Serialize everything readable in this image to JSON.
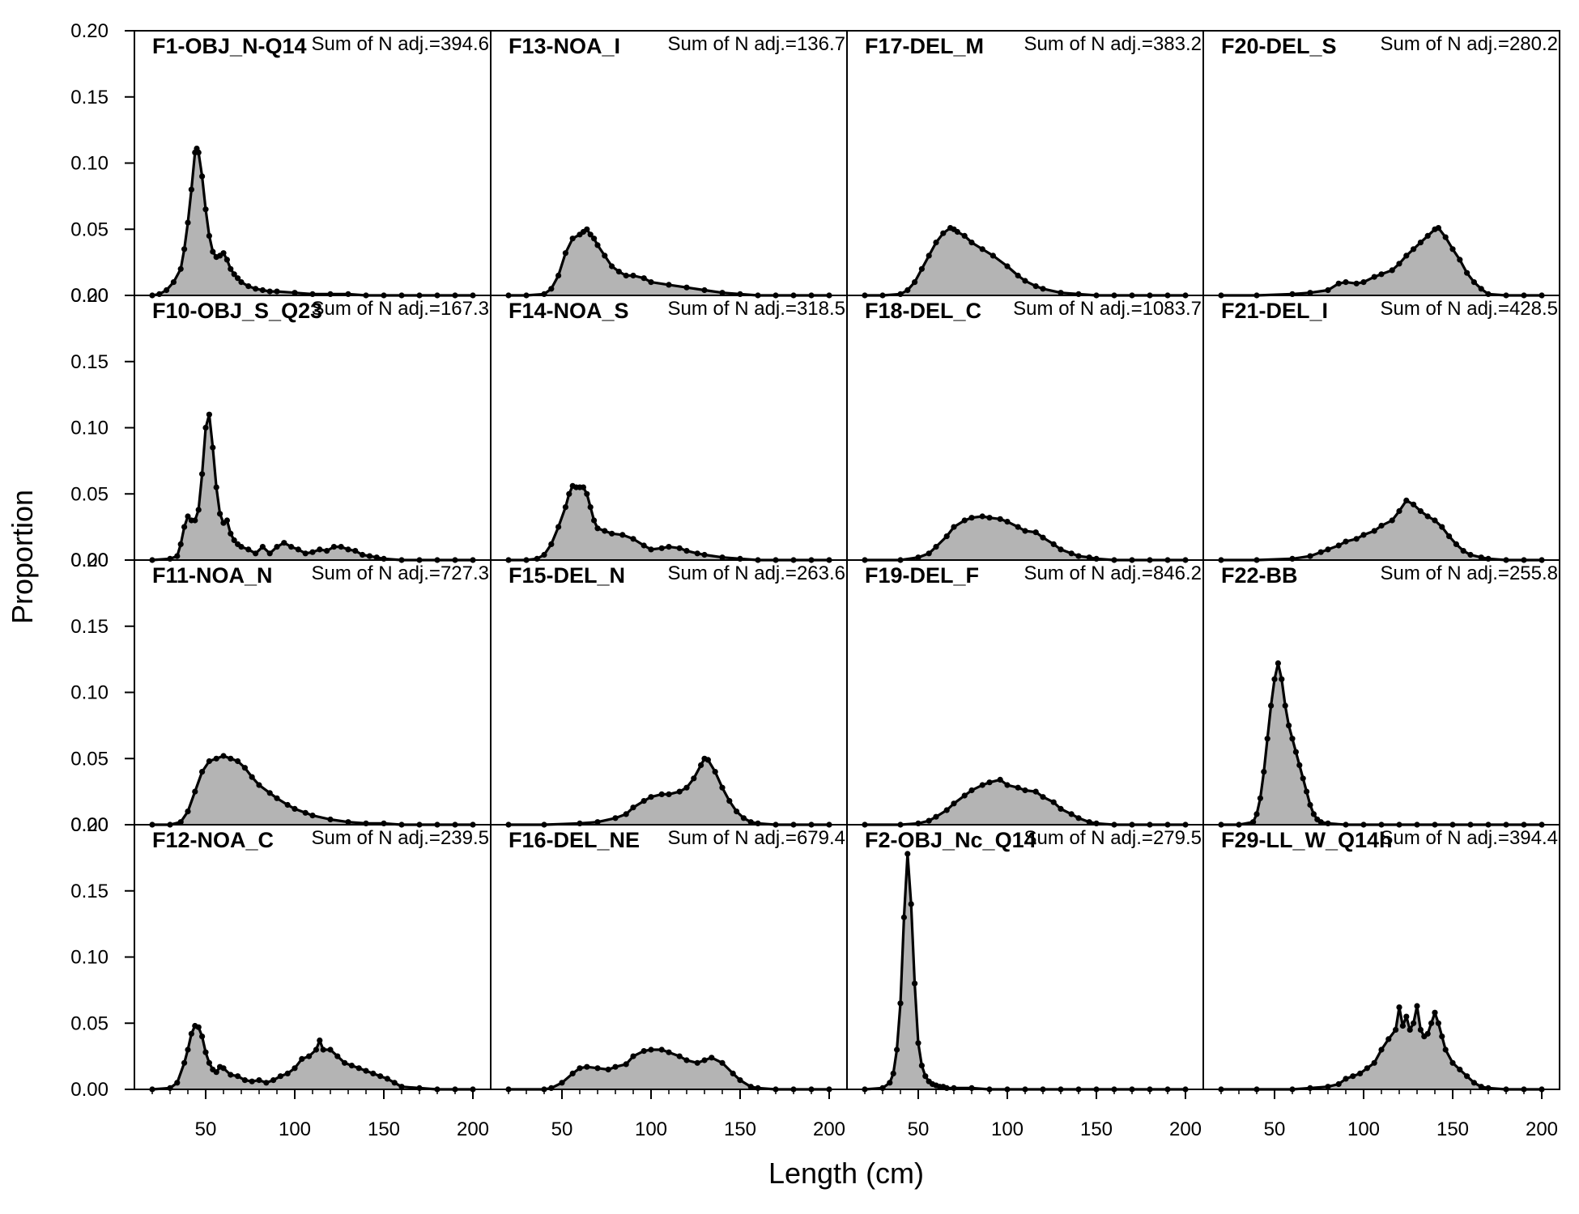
{
  "figure": {
    "xlabel": "Length (cm)",
    "ylabel": "Proportion"
  },
  "chart_data": {
    "type": "area",
    "layout": {
      "rows": 4,
      "cols": 4,
      "shared_axes": true
    },
    "xlim": [
      10,
      210
    ],
    "ylim": [
      0,
      0.2
    ],
    "xticks": [
      50,
      100,
      150,
      200
    ],
    "xtick_labels": [
      "50",
      "100",
      "150",
      "200"
    ],
    "yticks": [
      0,
      0.05,
      0.1,
      0.15,
      0.2
    ],
    "ytick_labels": [
      "0.00",
      "0.05",
      "0.10",
      "0.15",
      "0.20"
    ],
    "fill_color": "#b4b4b4",
    "line_color": "#000000",
    "panels": [
      {
        "title": "F1-OBJ_N-Q14",
        "annotation": "Sum of N adj.=394.6",
        "x": [
          20,
          24,
          28,
          32,
          36,
          38,
          40,
          42,
          44,
          45,
          46,
          48,
          50,
          52,
          54,
          56,
          58,
          60,
          62,
          64,
          66,
          68,
          70,
          74,
          78,
          82,
          86,
          90,
          100,
          110,
          120,
          130,
          140,
          150,
          160,
          170,
          180,
          190,
          200
        ],
        "values": [
          0,
          0.001,
          0.004,
          0.01,
          0.02,
          0.035,
          0.055,
          0.08,
          0.108,
          0.111,
          0.108,
          0.09,
          0.065,
          0.045,
          0.033,
          0.029,
          0.03,
          0.032,
          0.027,
          0.02,
          0.016,
          0.013,
          0.01,
          0.007,
          0.005,
          0.004,
          0.003,
          0.003,
          0.002,
          0.001,
          0.001,
          0.001,
          0,
          0,
          0,
          0,
          0,
          0,
          0
        ]
      },
      {
        "title": "F13-NOA_I",
        "annotation": "Sum of N adj.=136.7",
        "x": [
          20,
          30,
          40,
          44,
          48,
          52,
          56,
          60,
          62,
          64,
          66,
          68,
          70,
          74,
          78,
          82,
          86,
          90,
          96,
          100,
          110,
          120,
          130,
          140,
          150,
          160,
          170,
          180,
          190,
          200
        ],
        "values": [
          0,
          0,
          0.001,
          0.005,
          0.015,
          0.032,
          0.043,
          0.046,
          0.048,
          0.05,
          0.046,
          0.043,
          0.038,
          0.03,
          0.022,
          0.018,
          0.015,
          0.015,
          0.013,
          0.01,
          0.008,
          0.006,
          0.004,
          0.002,
          0.001,
          0,
          0,
          0,
          0,
          0
        ]
      },
      {
        "title": "F17-DEL_M",
        "annotation": "Sum of N adj.=383.2",
        "x": [
          20,
          30,
          40,
          44,
          48,
          52,
          56,
          60,
          64,
          68,
          70,
          72,
          76,
          80,
          86,
          92,
          100,
          106,
          110,
          116,
          120,
          130,
          140,
          150,
          160,
          170,
          180,
          190,
          200
        ],
        "values": [
          0,
          0,
          0.001,
          0.004,
          0.01,
          0.02,
          0.03,
          0.04,
          0.047,
          0.051,
          0.05,
          0.048,
          0.045,
          0.04,
          0.035,
          0.03,
          0.022,
          0.015,
          0.011,
          0.007,
          0.005,
          0.002,
          0.001,
          0,
          0,
          0,
          0,
          0,
          0
        ]
      },
      {
        "title": "F20-DEL_S",
        "annotation": "Sum of N adj.=280.2",
        "x": [
          20,
          40,
          60,
          70,
          80,
          86,
          90,
          96,
          100,
          106,
          110,
          116,
          120,
          124,
          128,
          132,
          136,
          140,
          142,
          146,
          150,
          154,
          158,
          162,
          166,
          170,
          180,
          190,
          200
        ],
        "values": [
          0,
          0,
          0.001,
          0.002,
          0.004,
          0.009,
          0.01,
          0.009,
          0.01,
          0.014,
          0.016,
          0.019,
          0.024,
          0.03,
          0.035,
          0.04,
          0.045,
          0.05,
          0.051,
          0.044,
          0.035,
          0.027,
          0.017,
          0.01,
          0.005,
          0.001,
          0,
          0,
          0
        ]
      },
      {
        "title": "F10-OBJ_S_Q23",
        "annotation": "Sum of N adj.=167.3",
        "x": [
          20,
          30,
          34,
          36,
          38,
          40,
          42,
          44,
          46,
          48,
          50,
          52,
          54,
          56,
          58,
          60,
          62,
          64,
          66,
          68,
          70,
          74,
          78,
          82,
          86,
          90,
          94,
          98,
          102,
          106,
          110,
          114,
          118,
          122,
          126,
          130,
          134,
          138,
          142,
          146,
          150,
          160,
          170,
          180,
          190,
          200
        ],
        "values": [
          0,
          0.001,
          0.003,
          0.012,
          0.025,
          0.033,
          0.03,
          0.03,
          0.038,
          0.065,
          0.1,
          0.11,
          0.085,
          0.055,
          0.035,
          0.028,
          0.03,
          0.02,
          0.015,
          0.012,
          0.01,
          0.008,
          0.005,
          0.01,
          0.005,
          0.01,
          0.013,
          0.01,
          0.008,
          0.005,
          0.006,
          0.008,
          0.007,
          0.01,
          0.01,
          0.008,
          0.007,
          0.004,
          0.003,
          0.002,
          0.001,
          0,
          0,
          0,
          0,
          0
        ]
      },
      {
        "title": "F14-NOA_S",
        "annotation": "Sum of N adj.=318.5",
        "x": [
          20,
          30,
          36,
          40,
          44,
          48,
          52,
          54,
          56,
          58,
          60,
          62,
          64,
          66,
          68,
          70,
          74,
          78,
          84,
          90,
          96,
          100,
          106,
          110,
          116,
          120,
          126,
          130,
          140,
          150,
          160,
          170,
          180,
          190,
          200
        ],
        "values": [
          0,
          0,
          0.001,
          0.004,
          0.012,
          0.025,
          0.04,
          0.05,
          0.056,
          0.055,
          0.055,
          0.055,
          0.05,
          0.04,
          0.03,
          0.024,
          0.022,
          0.02,
          0.019,
          0.016,
          0.011,
          0.008,
          0.009,
          0.01,
          0.009,
          0.007,
          0.005,
          0.004,
          0.002,
          0.001,
          0,
          0,
          0,
          0,
          0
        ]
      },
      {
        "title": "F18-DEL_C",
        "annotation": "Sum of N adj.=1083.7",
        "x": [
          20,
          40,
          50,
          56,
          60,
          66,
          70,
          76,
          80,
          86,
          90,
          96,
          100,
          106,
          110,
          116,
          120,
          126,
          130,
          136,
          140,
          146,
          150,
          160,
          170,
          180,
          190,
          200
        ],
        "values": [
          0,
          0,
          0.002,
          0.005,
          0.01,
          0.018,
          0.025,
          0.03,
          0.032,
          0.033,
          0.032,
          0.031,
          0.029,
          0.025,
          0.022,
          0.021,
          0.017,
          0.012,
          0.008,
          0.005,
          0.003,
          0.002,
          0.001,
          0,
          0,
          0,
          0,
          0
        ]
      },
      {
        "title": "F21-DEL_I",
        "annotation": "Sum of N adj.=428.5",
        "x": [
          20,
          40,
          60,
          70,
          76,
          80,
          86,
          90,
          96,
          100,
          106,
          110,
          116,
          120,
          124,
          128,
          132,
          136,
          140,
          144,
          148,
          152,
          156,
          160,
          166,
          170,
          180,
          190,
          200
        ],
        "values": [
          0,
          0,
          0.001,
          0.003,
          0.006,
          0.008,
          0.011,
          0.014,
          0.016,
          0.019,
          0.022,
          0.026,
          0.03,
          0.037,
          0.045,
          0.042,
          0.037,
          0.033,
          0.03,
          0.025,
          0.018,
          0.012,
          0.007,
          0.004,
          0.002,
          0.001,
          0,
          0,
          0
        ]
      },
      {
        "title": "F11-NOA_N",
        "annotation": "Sum of N adj.=727.3",
        "x": [
          20,
          30,
          36,
          40,
          44,
          48,
          52,
          56,
          60,
          64,
          68,
          72,
          76,
          80,
          86,
          90,
          96,
          100,
          106,
          110,
          120,
          130,
          140,
          150,
          160,
          170,
          180,
          190,
          200
        ],
        "values": [
          0,
          0,
          0.002,
          0.01,
          0.025,
          0.04,
          0.048,
          0.05,
          0.052,
          0.05,
          0.048,
          0.043,
          0.036,
          0.03,
          0.024,
          0.02,
          0.015,
          0.012,
          0.009,
          0.007,
          0.004,
          0.002,
          0.001,
          0.001,
          0,
          0,
          0,
          0,
          0
        ]
      },
      {
        "title": "F15-DEL_N",
        "annotation": "Sum of N adj.=263.6",
        "x": [
          20,
          40,
          60,
          70,
          80,
          86,
          90,
          96,
          100,
          106,
          110,
          116,
          120,
          124,
          128,
          130,
          132,
          136,
          140,
          144,
          148,
          152,
          156,
          160,
          170,
          180,
          190,
          200
        ],
        "values": [
          0,
          0,
          0.001,
          0.002,
          0.005,
          0.008,
          0.013,
          0.018,
          0.021,
          0.023,
          0.023,
          0.025,
          0.028,
          0.035,
          0.045,
          0.05,
          0.049,
          0.04,
          0.028,
          0.018,
          0.01,
          0.005,
          0.002,
          0.001,
          0,
          0,
          0,
          0
        ]
      },
      {
        "title": "F19-DEL_F",
        "annotation": "Sum of N adj.=846.2",
        "x": [
          20,
          40,
          50,
          56,
          60,
          66,
          70,
          76,
          80,
          86,
          90,
          96,
          100,
          106,
          110,
          116,
          120,
          126,
          130,
          136,
          140,
          146,
          150,
          160,
          170,
          180,
          190,
          200
        ],
        "values": [
          0,
          0,
          0.001,
          0.003,
          0.006,
          0.011,
          0.016,
          0.022,
          0.026,
          0.03,
          0.032,
          0.034,
          0.03,
          0.028,
          0.026,
          0.025,
          0.021,
          0.017,
          0.012,
          0.008,
          0.005,
          0.002,
          0.001,
          0,
          0,
          0,
          0,
          0
        ]
      },
      {
        "title": "F22-BB",
        "annotation": "Sum of N adj.=255.8",
        "x": [
          20,
          30,
          38,
          40,
          42,
          44,
          46,
          48,
          50,
          52,
          54,
          56,
          58,
          60,
          62,
          64,
          66,
          68,
          70,
          72,
          74,
          76,
          80,
          90,
          100,
          110,
          120,
          130,
          140,
          150,
          160,
          170,
          180,
          190,
          200
        ],
        "values": [
          0,
          0,
          0.002,
          0.008,
          0.02,
          0.04,
          0.065,
          0.09,
          0.11,
          0.122,
          0.11,
          0.09,
          0.075,
          0.065,
          0.055,
          0.045,
          0.035,
          0.025,
          0.015,
          0.008,
          0.004,
          0.002,
          0.001,
          0,
          0,
          0,
          0,
          0,
          0,
          0,
          0,
          0,
          0,
          0,
          0
        ]
      },
      {
        "title": "F12-NOA_C",
        "annotation": "Sum of N adj.=239.5",
        "x": [
          20,
          30,
          34,
          38,
          40,
          42,
          44,
          46,
          48,
          50,
          52,
          54,
          56,
          58,
          60,
          64,
          68,
          72,
          76,
          80,
          84,
          88,
          92,
          96,
          100,
          104,
          108,
          112,
          114,
          116,
          120,
          124,
          128,
          132,
          136,
          140,
          144,
          148,
          152,
          156,
          160,
          170,
          180,
          190,
          200
        ],
        "values": [
          0,
          0.001,
          0.005,
          0.02,
          0.03,
          0.042,
          0.048,
          0.047,
          0.04,
          0.028,
          0.02,
          0.015,
          0.013,
          0.017,
          0.016,
          0.011,
          0.01,
          0.007,
          0.006,
          0.007,
          0.005,
          0.007,
          0.01,
          0.012,
          0.016,
          0.023,
          0.025,
          0.03,
          0.037,
          0.03,
          0.03,
          0.025,
          0.02,
          0.018,
          0.016,
          0.014,
          0.012,
          0.01,
          0.008,
          0.005,
          0.002,
          0.001,
          0,
          0,
          0
        ]
      },
      {
        "title": "F16-DEL_NE",
        "annotation": "Sum of N adj.=679.4",
        "x": [
          20,
          40,
          44,
          50,
          56,
          60,
          64,
          70,
          76,
          80,
          86,
          90,
          96,
          100,
          106,
          110,
          116,
          120,
          126,
          130,
          134,
          140,
          146,
          150,
          156,
          160,
          170,
          180,
          190,
          200
        ],
        "values": [
          0,
          0,
          0.001,
          0.005,
          0.012,
          0.016,
          0.017,
          0.016,
          0.015,
          0.017,
          0.019,
          0.025,
          0.029,
          0.03,
          0.03,
          0.028,
          0.025,
          0.022,
          0.02,
          0.022,
          0.024,
          0.02,
          0.012,
          0.007,
          0.002,
          0.001,
          0,
          0,
          0,
          0
        ]
      },
      {
        "title": "F2-OBJ_Nc_Q14",
        "annotation": "Sum of N adj.=279.5",
        "x": [
          20,
          30,
          34,
          36,
          38,
          40,
          42,
          44,
          46,
          48,
          50,
          52,
          54,
          56,
          58,
          60,
          62,
          64,
          66,
          70,
          80,
          90,
          100,
          110,
          120,
          130,
          140,
          150,
          160,
          170,
          180,
          190,
          200
        ],
        "values": [
          0,
          0.001,
          0.005,
          0.012,
          0.03,
          0.065,
          0.13,
          0.178,
          0.14,
          0.08,
          0.035,
          0.018,
          0.01,
          0.006,
          0.004,
          0.003,
          0.002,
          0.002,
          0.001,
          0.001,
          0.001,
          0,
          0,
          0,
          0,
          0,
          0,
          0,
          0,
          0,
          0,
          0,
          0
        ]
      },
      {
        "title": "F29-LL_W_Q14h",
        "annotation": "Sum of N adj.=394.4",
        "x": [
          20,
          40,
          60,
          70,
          80,
          86,
          90,
          94,
          98,
          102,
          106,
          110,
          114,
          118,
          120,
          122,
          124,
          126,
          128,
          130,
          132,
          134,
          136,
          138,
          140,
          142,
          144,
          146,
          150,
          154,
          158,
          162,
          166,
          170,
          180,
          190,
          200
        ],
        "values": [
          0,
          0,
          0,
          0.001,
          0.002,
          0.004,
          0.008,
          0.01,
          0.012,
          0.016,
          0.02,
          0.03,
          0.038,
          0.045,
          0.062,
          0.048,
          0.055,
          0.045,
          0.05,
          0.063,
          0.045,
          0.04,
          0.042,
          0.05,
          0.058,
          0.05,
          0.04,
          0.03,
          0.02,
          0.015,
          0.01,
          0.005,
          0.002,
          0.001,
          0,
          0,
          0
        ]
      }
    ]
  }
}
